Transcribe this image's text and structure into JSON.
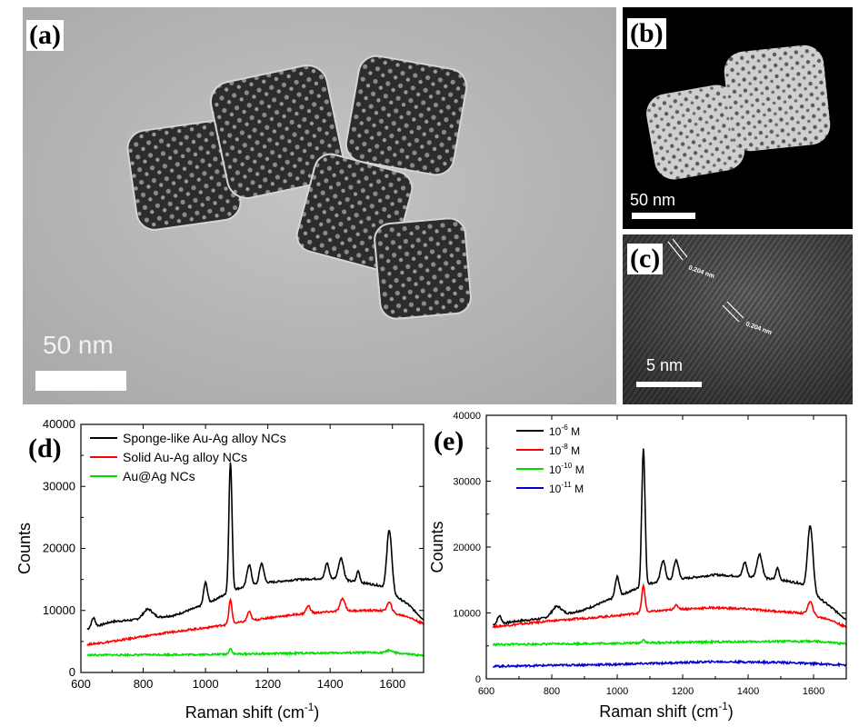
{
  "panels": {
    "a": {
      "label": "(a)",
      "scale_text": "50 nm"
    },
    "b": {
      "label": "(b)",
      "scale_text": "50 nm"
    },
    "c": {
      "label": "(c)",
      "scale_text": "5 nm",
      "lattice_labels": [
        "0.204 nm",
        "0.204 nm"
      ]
    },
    "d": {
      "label": "(d)"
    },
    "e": {
      "label": "(e)"
    }
  },
  "colors": {
    "black": "#000000",
    "red": "#ff0000",
    "green": "#00e000",
    "blue": "#0000cc"
  },
  "chart_data": [
    {
      "panel": "d",
      "type": "line",
      "xlabel": "Raman shift (cm-1)",
      "ylabel": "Counts",
      "xlim": [
        600,
        1700
      ],
      "ylim": [
        0,
        40000
      ],
      "xticks": [
        600,
        800,
        1000,
        1200,
        1400,
        1600
      ],
      "yticks": [
        0,
        10000,
        20000,
        30000,
        40000
      ],
      "legend_position": "top-left",
      "series": [
        {
          "name": "Sponge-like Au-Ag alloy NCs",
          "color": "#000000",
          "baseline": [
            [
              620,
              7000
            ],
            [
              700,
              8200
            ],
            [
              800,
              8600
            ],
            [
              900,
              9200
            ],
            [
              1000,
              11000
            ],
            [
              1100,
              13500
            ],
            [
              1200,
              14500
            ],
            [
              1300,
              15000
            ],
            [
              1400,
              15200
            ],
            [
              1500,
              14500
            ],
            [
              1560,
              14000
            ],
            [
              1650,
              11000
            ],
            [
              1700,
              8500
            ]
          ],
          "peaks": [
            [
              640,
              1500,
              6
            ],
            [
              815,
              1500,
              15
            ],
            [
              1000,
              3500,
              6
            ],
            [
              1080,
              21000,
              5
            ],
            [
              1140,
              3500,
              7
            ],
            [
              1180,
              3300,
              7
            ],
            [
              1390,
              2500,
              6
            ],
            [
              1435,
              3500,
              8
            ],
            [
              1490,
              1800,
              5
            ],
            [
              1590,
              10000,
              8
            ]
          ]
        },
        {
          "name": "Solid Au-Ag alloy NCs",
          "color": "#ff0000",
          "baseline": [
            [
              620,
              4500
            ],
            [
              700,
              5000
            ],
            [
              800,
              5800
            ],
            [
              900,
              6600
            ],
            [
              1000,
              7200
            ],
            [
              1100,
              8000
            ],
            [
              1200,
              8800
            ],
            [
              1300,
              9400
            ],
            [
              1400,
              9800
            ],
            [
              1500,
              10000
            ],
            [
              1560,
              10000
            ],
            [
              1650,
              9000
            ],
            [
              1700,
              7800
            ]
          ],
          "peaks": [
            [
              1080,
              3800,
              5
            ],
            [
              1140,
              1500,
              6
            ],
            [
              1330,
              1200,
              7
            ],
            [
              1440,
              2000,
              8
            ],
            [
              1590,
              1600,
              8
            ]
          ]
        },
        {
          "name": "Au@Ag NCs",
          "color": "#00e000",
          "baseline": [
            [
              620,
              2800
            ],
            [
              1000,
              2900
            ],
            [
              1300,
              3100
            ],
            [
              1500,
              3200
            ],
            [
              1600,
              3200
            ],
            [
              1700,
              2700
            ]
          ],
          "peaks": [
            [
              1080,
              900,
              5
            ],
            [
              1590,
              400,
              8
            ]
          ]
        }
      ]
    },
    {
      "panel": "e",
      "type": "line",
      "xlabel": "Raman shift (cm-1)",
      "ylabel": "Counts",
      "xlim": [
        600,
        1700
      ],
      "ylim": [
        0,
        40000
      ],
      "xticks": [
        600,
        800,
        1000,
        1200,
        1400,
        1600
      ],
      "yticks": [
        0,
        10000,
        20000,
        30000,
        40000
      ],
      "legend_position": "top-left",
      "series": [
        {
          "name": "10-6 M",
          "color": "#000000",
          "baseline": [
            [
              620,
              8200
            ],
            [
              700,
              8800
            ],
            [
              800,
              9300
            ],
            [
              900,
              10500
            ],
            [
              1000,
              12500
            ],
            [
              1100,
              14500
            ],
            [
              1200,
              15200
            ],
            [
              1300,
              15800
            ],
            [
              1400,
              15500
            ],
            [
              1500,
              15000
            ],
            [
              1560,
              14500
            ],
            [
              1650,
              11000
            ],
            [
              1700,
              9000
            ]
          ],
          "peaks": [
            [
              640,
              1200,
              6
            ],
            [
              815,
              1500,
              15
            ],
            [
              1000,
              3000,
              6
            ],
            [
              1080,
              21000,
              5
            ],
            [
              1140,
              3200,
              7
            ],
            [
              1180,
              3000,
              7
            ],
            [
              1390,
              2200,
              6
            ],
            [
              1435,
              3600,
              8
            ],
            [
              1490,
              1800,
              5
            ],
            [
              1590,
              10000,
              8
            ]
          ]
        },
        {
          "name": "10-8 M",
          "color": "#ff0000",
          "baseline": [
            [
              620,
              7900
            ],
            [
              700,
              8300
            ],
            [
              800,
              8800
            ],
            [
              900,
              9200
            ],
            [
              1000,
              9600
            ],
            [
              1100,
              10200
            ],
            [
              1200,
              10600
            ],
            [
              1300,
              10800
            ],
            [
              1400,
              10600
            ],
            [
              1500,
              10200
            ],
            [
              1560,
              10000
            ],
            [
              1650,
              9000
            ],
            [
              1700,
              7800
            ]
          ],
          "peaks": [
            [
              1080,
              4000,
              5
            ],
            [
              1180,
              600,
              7
            ],
            [
              1590,
              2000,
              8
            ]
          ]
        },
        {
          "name": "10-10 M",
          "color": "#00e000",
          "baseline": [
            [
              620,
              5200
            ],
            [
              1000,
              5400
            ],
            [
              1300,
              5600
            ],
            [
              1600,
              5700
            ],
            [
              1700,
              5300
            ]
          ],
          "peaks": [
            [
              1080,
              500,
              5
            ]
          ]
        },
        {
          "name": "10-11 M",
          "color": "#0000cc",
          "baseline": [
            [
              620,
              1900
            ],
            [
              1000,
              2200
            ],
            [
              1300,
              2600
            ],
            [
              1500,
              2500
            ],
            [
              1700,
              2100
            ]
          ],
          "peaks": []
        }
      ]
    }
  ]
}
